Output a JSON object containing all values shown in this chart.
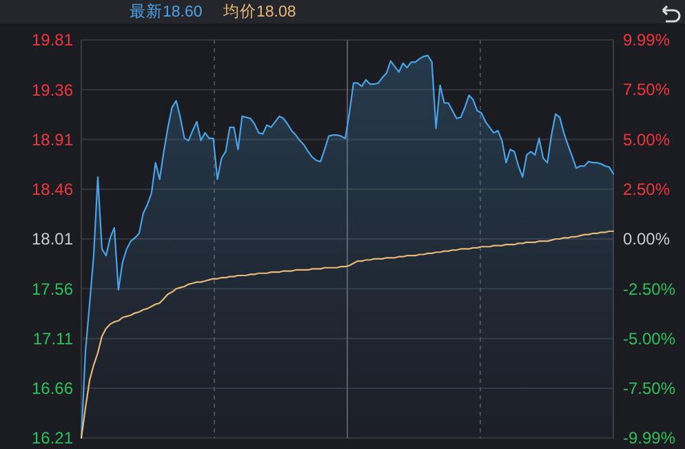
{
  "chart_data": {
    "type": "line",
    "annotations": [
      "最新18.60",
      "均价18.08"
    ],
    "categories": [
      null,
      null,
      null,
      null,
      null,
      null,
      null,
      null,
      null,
      null,
      null,
      null,
      null,
      null,
      null,
      null,
      null,
      null,
      null,
      null,
      null,
      null,
      null,
      null,
      null,
      null,
      null,
      null,
      null,
      null,
      null,
      null,
      null,
      null,
      null,
      null,
      null,
      null,
      null,
      null,
      null,
      null,
      null,
      null,
      null,
      null,
      null,
      null,
      null,
      null,
      null,
      null,
      null,
      null,
      null,
      null,
      null,
      null,
      null,
      null,
      null,
      null,
      null,
      null,
      null,
      null,
      null,
      null,
      null,
      null,
      null,
      null,
      null,
      null,
      null,
      null,
      null,
      null,
      null,
      null,
      null,
      null,
      null,
      null,
      null,
      null,
      null,
      null,
      null,
      null,
      null,
      null,
      null,
      null,
      null,
      null,
      null,
      null,
      null,
      null,
      null,
      null,
      null,
      null,
      null,
      null,
      null,
      null,
      null,
      null,
      null,
      null,
      null,
      null,
      null,
      null,
      null,
      null,
      null,
      null,
      null,
      null,
      null,
      null,
      null,
      null,
      null,
      null,
      null,
      null
    ],
    "series": [
      {
        "type": "area",
        "color": "#4aa3e8",
        "values": [
          16.21,
          16.99,
          17.42,
          17.86,
          18.57,
          17.92,
          17.86,
          18.02,
          18.11,
          17.55,
          17.8,
          17.92,
          17.99,
          18.02,
          18.06,
          18.24,
          18.32,
          18.42,
          18.7,
          18.55,
          18.8,
          19.02,
          19.2,
          19.26,
          19.11,
          18.92,
          18.9,
          18.99,
          19.07,
          18.9,
          18.97,
          18.92,
          18.92,
          18.55,
          18.74,
          18.8,
          19.02,
          19.02,
          18.82,
          19.12,
          19.11,
          19.1,
          19.05,
          18.97,
          18.96,
          19.04,
          19.02,
          19.07,
          19.12,
          19.1,
          19.05,
          18.99,
          18.95,
          18.9,
          18.86,
          18.8,
          18.75,
          18.72,
          18.71,
          18.82,
          18.94,
          18.95,
          18.95,
          18.94,
          18.92,
          19.15,
          19.42,
          19.42,
          19.39,
          19.45,
          19.41,
          19.41,
          19.42,
          19.47,
          19.51,
          19.62,
          19.57,
          19.52,
          19.6,
          19.56,
          19.61,
          19.61,
          19.64,
          19.66,
          19.67,
          19.61,
          19.01,
          19.4,
          19.24,
          19.24,
          19.17,
          19.1,
          19.11,
          19.2,
          19.31,
          19.27,
          19.17,
          19.15,
          19.07,
          19.02,
          18.97,
          18.99,
          18.9,
          18.7,
          18.82,
          18.8,
          18.67,
          18.57,
          18.77,
          18.8,
          18.77,
          18.92,
          18.74,
          18.7,
          18.95,
          19.14,
          19.11,
          18.97,
          18.86,
          18.76,
          18.65,
          18.67,
          18.67,
          18.71,
          18.7,
          18.7,
          18.69,
          18.67,
          18.66,
          18.6
        ]
      },
      {
        "color": "#e8b878",
        "values": [
          16.21,
          16.48,
          16.73,
          16.87,
          16.98,
          17.13,
          17.2,
          17.24,
          17.26,
          17.27,
          17.3,
          17.31,
          17.32,
          17.34,
          17.35,
          17.37,
          17.38,
          17.4,
          17.42,
          17.43,
          17.47,
          17.51,
          17.53,
          17.56,
          17.57,
          17.58,
          17.6,
          17.61,
          17.62,
          17.62,
          17.63,
          17.64,
          17.65,
          17.65,
          17.66,
          17.66,
          17.67,
          17.67,
          17.68,
          17.68,
          17.68,
          17.69,
          17.69,
          17.7,
          17.7,
          17.7,
          17.71,
          17.71,
          17.71,
          17.72,
          17.72,
          17.72,
          17.73,
          17.73,
          17.73,
          17.73,
          17.74,
          17.74,
          17.74,
          17.75,
          17.75,
          17.75,
          17.75,
          17.76,
          17.76,
          17.77,
          17.79,
          17.81,
          17.81,
          17.82,
          17.82,
          17.83,
          17.83,
          17.83,
          17.84,
          17.84,
          17.84,
          17.85,
          17.85,
          17.86,
          17.86,
          17.86,
          17.87,
          17.87,
          17.88,
          17.88,
          17.89,
          17.89,
          17.9,
          17.9,
          17.91,
          17.91,
          17.92,
          17.92,
          17.92,
          17.93,
          17.93,
          17.94,
          17.94,
          17.94,
          17.95,
          17.95,
          17.95,
          17.96,
          17.96,
          17.96,
          17.97,
          17.97,
          17.98,
          17.98,
          17.98,
          17.99,
          17.99,
          17.99,
          18.0,
          18.01,
          18.01,
          18.02,
          18.02,
          18.03,
          18.03,
          18.04,
          18.05,
          18.05,
          18.06,
          18.06,
          18.07,
          18.07,
          18.08,
          18.08
        ]
      }
    ],
    "ylim": [
      16.21,
      19.81
    ],
    "yticks": [
      16.21,
      16.66,
      17.11,
      17.56,
      18.01,
      18.46,
      18.91,
      19.36,
      19.81
    ],
    "y2lim": [
      -9.99,
      9.99
    ],
    "y2ticks": [
      {
        "value": -9.99,
        "label": "-9.99%"
      },
      {
        "value": -7.5,
        "label": "-7.50%"
      },
      {
        "value": -5,
        "label": "-5.00%"
      },
      {
        "value": -2.5,
        "label": "-2.50%"
      },
      {
        "value": 0,
        "label": "0.00%"
      },
      {
        "value": 2.5,
        "label": "2.50%"
      },
      {
        "value": 5,
        "label": "5.00%"
      },
      {
        "value": 7.5,
        "label": "7.50%"
      },
      {
        "value": 9.99,
        "label": "9.99%"
      }
    ],
    "grid": true
  }
}
